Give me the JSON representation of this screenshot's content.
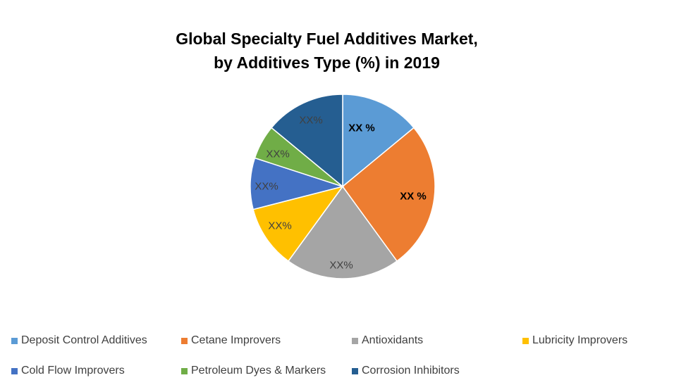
{
  "title_line1": "Global Specialty Fuel Additives Market,",
  "title_line2": "by Additives Type (%) in 2019",
  "chart_data": {
    "type": "pie",
    "title": "Global Specialty Fuel Additives Market, by Additives Type (%) in 2019",
    "legend_position": "bottom",
    "slices": [
      {
        "name": "Deposit Control Additives",
        "value": 14,
        "label": "XX %",
        "color": "#5B9BD5",
        "label_bold": true,
        "label_color": "#000000"
      },
      {
        "name": "Cetane Improvers",
        "value": 26,
        "label": "XX %",
        "color": "#ED7D31",
        "label_bold": true,
        "label_color": "#000000"
      },
      {
        "name": "Antioxidants",
        "value": 20,
        "label": "XX%",
        "color": "#A5A5A5",
        "label_bold": false,
        "label_color": "#404040"
      },
      {
        "name": "Lubricity Improvers",
        "value": 11,
        "label": "XX%",
        "color": "#FFC000",
        "label_bold": false,
        "label_color": "#404040"
      },
      {
        "name": "Cold Flow Improvers",
        "value": 9,
        "label": "XX%",
        "color": "#4472C4",
        "label_bold": false,
        "label_color": "#404040"
      },
      {
        "name": "Petroleum Dyes & Markers",
        "value": 6,
        "label": "XX%",
        "color": "#70AD47",
        "label_bold": false,
        "label_color": "#404040"
      },
      {
        "name": "Corrosion Inhibitors",
        "value": 14,
        "label": "XX%",
        "color": "#255E91",
        "label_bold": false,
        "label_color": "#404040"
      }
    ]
  }
}
